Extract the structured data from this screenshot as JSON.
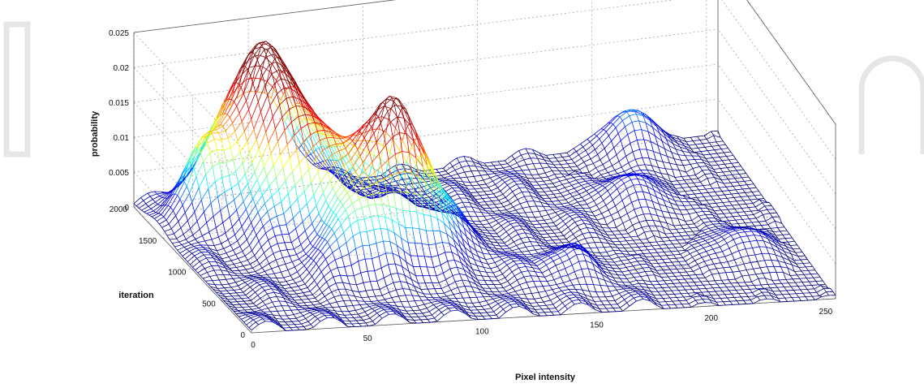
{
  "chart_data": {
    "type": "surface",
    "title": "",
    "xlabel": "Pixel intensity",
    "ylabel": "iteration",
    "zlabel": "probability",
    "xlim": [
      0,
      255
    ],
    "ylim": [
      0,
      2000
    ],
    "zlim": [
      0,
      0.025
    ],
    "x_ticks": [
      "0",
      "50",
      "100",
      "150",
      "200",
      "250"
    ],
    "y_ticks": [
      "0",
      "500",
      "1000",
      "1500",
      "2000"
    ],
    "z_ticks": [
      "0",
      "0.005",
      "0.01",
      "0.015",
      "0.02",
      "0.025"
    ],
    "grid": true,
    "colormap": [
      "#000080",
      "#0000ff",
      "#00ffff",
      "#ffff00",
      "#ff0000",
      "#800000"
    ],
    "peaks": [
      {
        "x": 50,
        "y": 1800,
        "z": 0.0205
      },
      {
        "x": 88,
        "y": 1000,
        "z": 0.02
      },
      {
        "x": 55,
        "y": 1350,
        "z": 0.0145
      },
      {
        "x": 20,
        "y": 1600,
        "z": 0.008
      },
      {
        "x": 62,
        "y": 700,
        "z": 0.007
      },
      {
        "x": 200,
        "y": 1300,
        "z": 0.004
      },
      {
        "x": 215,
        "y": 1900,
        "z": 0.006
      },
      {
        "x": 230,
        "y": 600,
        "z": 0.003
      },
      {
        "x": 150,
        "y": 500,
        "z": 0.003
      }
    ]
  }
}
